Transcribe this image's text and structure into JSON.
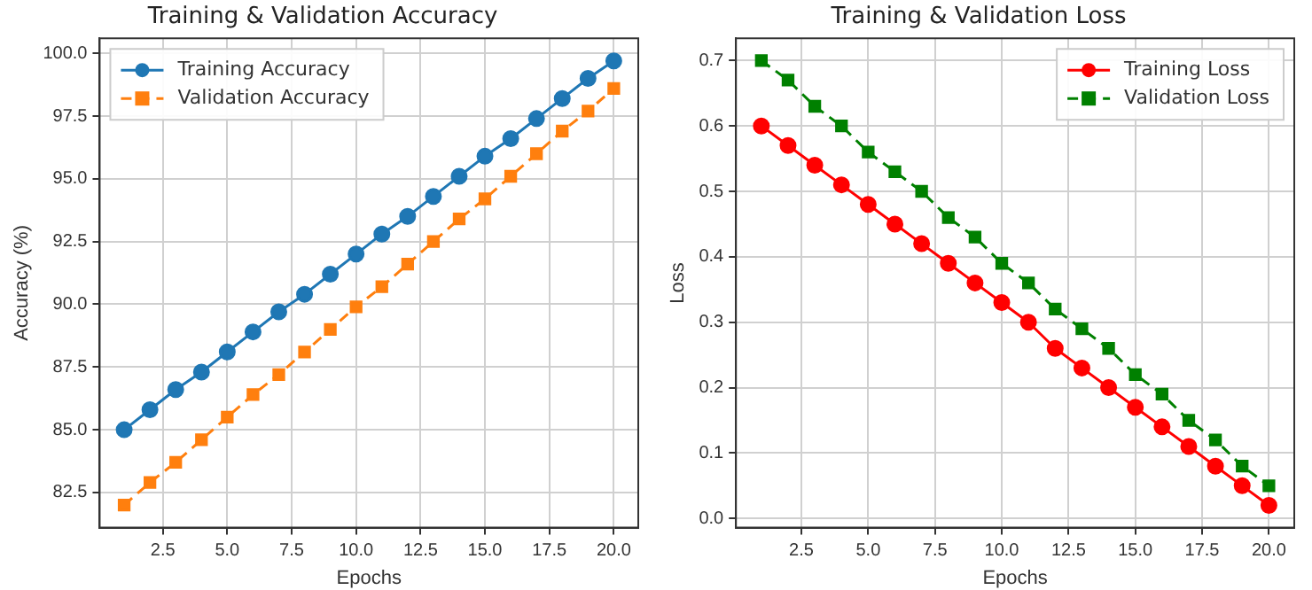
{
  "chart_data": [
    {
      "type": "line",
      "title": "Training & Validation Accuracy",
      "xlabel": "Epochs",
      "ylabel": "Accuracy (%)",
      "x": [
        1,
        2,
        3,
        4,
        5,
        6,
        7,
        8,
        9,
        10,
        11,
        12,
        13,
        14,
        15,
        16,
        17,
        18,
        19,
        20
      ],
      "series": [
        {
          "name": "Training Accuracy",
          "color": "#1f77b4",
          "marker": "circle",
          "line_style": "solid",
          "values": [
            85.0,
            85.8,
            86.6,
            87.3,
            88.1,
            88.9,
            89.7,
            90.4,
            91.2,
            92.0,
            92.8,
            93.5,
            94.3,
            95.1,
            95.9,
            96.6,
            97.4,
            98.2,
            99.0,
            99.7
          ]
        },
        {
          "name": "Validation Accuracy",
          "color": "#ff7f0e",
          "marker": "square",
          "line_style": "dashed",
          "values": [
            82.0,
            82.9,
            83.7,
            84.6,
            85.5,
            86.4,
            87.2,
            88.1,
            89.0,
            89.9,
            90.7,
            91.6,
            92.5,
            93.4,
            94.2,
            95.1,
            96.0,
            96.9,
            97.7,
            98.6
          ]
        }
      ],
      "xlim": [
        0.05,
        20.95
      ],
      "ylim": [
        81.1,
        100.6
      ],
      "xticks": [
        {
          "value": 2.5,
          "label": "2.5"
        },
        {
          "value": 5,
          "label": "5.0"
        },
        {
          "value": 7.5,
          "label": "7.5"
        },
        {
          "value": 10,
          "label": "10.0"
        },
        {
          "value": 12.5,
          "label": "12.5"
        },
        {
          "value": 15,
          "label": "15.0"
        },
        {
          "value": 17.5,
          "label": "17.5"
        },
        {
          "value": 20,
          "label": "20.0"
        }
      ],
      "yticks": [
        {
          "value": 82.5,
          "label": "82.5"
        },
        {
          "value": 85,
          "label": "85.0"
        },
        {
          "value": 87.5,
          "label": "87.5"
        },
        {
          "value": 90,
          "label": "90.0"
        },
        {
          "value": 92.5,
          "label": "92.5"
        },
        {
          "value": 95,
          "label": "95.0"
        },
        {
          "value": 97.5,
          "label": "97.5"
        },
        {
          "value": 100,
          "label": "100.0"
        }
      ],
      "grid": true,
      "legend": "top left"
    },
    {
      "type": "line",
      "title": "Training & Validation Loss",
      "xlabel": "Epochs",
      "ylabel": "Loss",
      "x": [
        1,
        2,
        3,
        4,
        5,
        6,
        7,
        8,
        9,
        10,
        11,
        12,
        13,
        14,
        15,
        16,
        17,
        18,
        19,
        20
      ],
      "series": [
        {
          "name": "Training Loss",
          "color": "#ff0000",
          "marker": "circle",
          "line_style": "solid",
          "values": [
            0.6,
            0.57,
            0.54,
            0.51,
            0.48,
            0.45,
            0.42,
            0.39,
            0.36,
            0.33,
            0.3,
            0.26,
            0.23,
            0.2,
            0.17,
            0.14,
            0.11,
            0.08,
            0.05,
            0.02
          ]
        },
        {
          "name": "Validation Loss",
          "color": "#008000",
          "marker": "square",
          "line_style": "dashed",
          "values": [
            0.7,
            0.67,
            0.63,
            0.6,
            0.56,
            0.53,
            0.5,
            0.46,
            0.43,
            0.39,
            0.36,
            0.32,
            0.29,
            0.26,
            0.22,
            0.19,
            0.15,
            0.12,
            0.08,
            0.05
          ]
        }
      ],
      "xlim": [
        0.05,
        20.95
      ],
      "ylim": [
        -0.014,
        0.734
      ],
      "xticks": [
        {
          "value": 2.5,
          "label": "2.5"
        },
        {
          "value": 5,
          "label": "5.0"
        },
        {
          "value": 7.5,
          "label": "7.5"
        },
        {
          "value": 10,
          "label": "10.0"
        },
        {
          "value": 12.5,
          "label": "12.5"
        },
        {
          "value": 15,
          "label": "15.0"
        },
        {
          "value": 17.5,
          "label": "17.5"
        },
        {
          "value": 20,
          "label": "20.0"
        }
      ],
      "yticks": [
        {
          "value": 0,
          "label": "0.0"
        },
        {
          "value": 0.1,
          "label": "0.1"
        },
        {
          "value": 0.2,
          "label": "0.2"
        },
        {
          "value": 0.3,
          "label": "0.3"
        },
        {
          "value": 0.4,
          "label": "0.4"
        },
        {
          "value": 0.5,
          "label": "0.5"
        },
        {
          "value": 0.6,
          "label": "0.6"
        },
        {
          "value": 0.7,
          "label": "0.7"
        }
      ],
      "grid": true,
      "legend": "top right"
    }
  ]
}
